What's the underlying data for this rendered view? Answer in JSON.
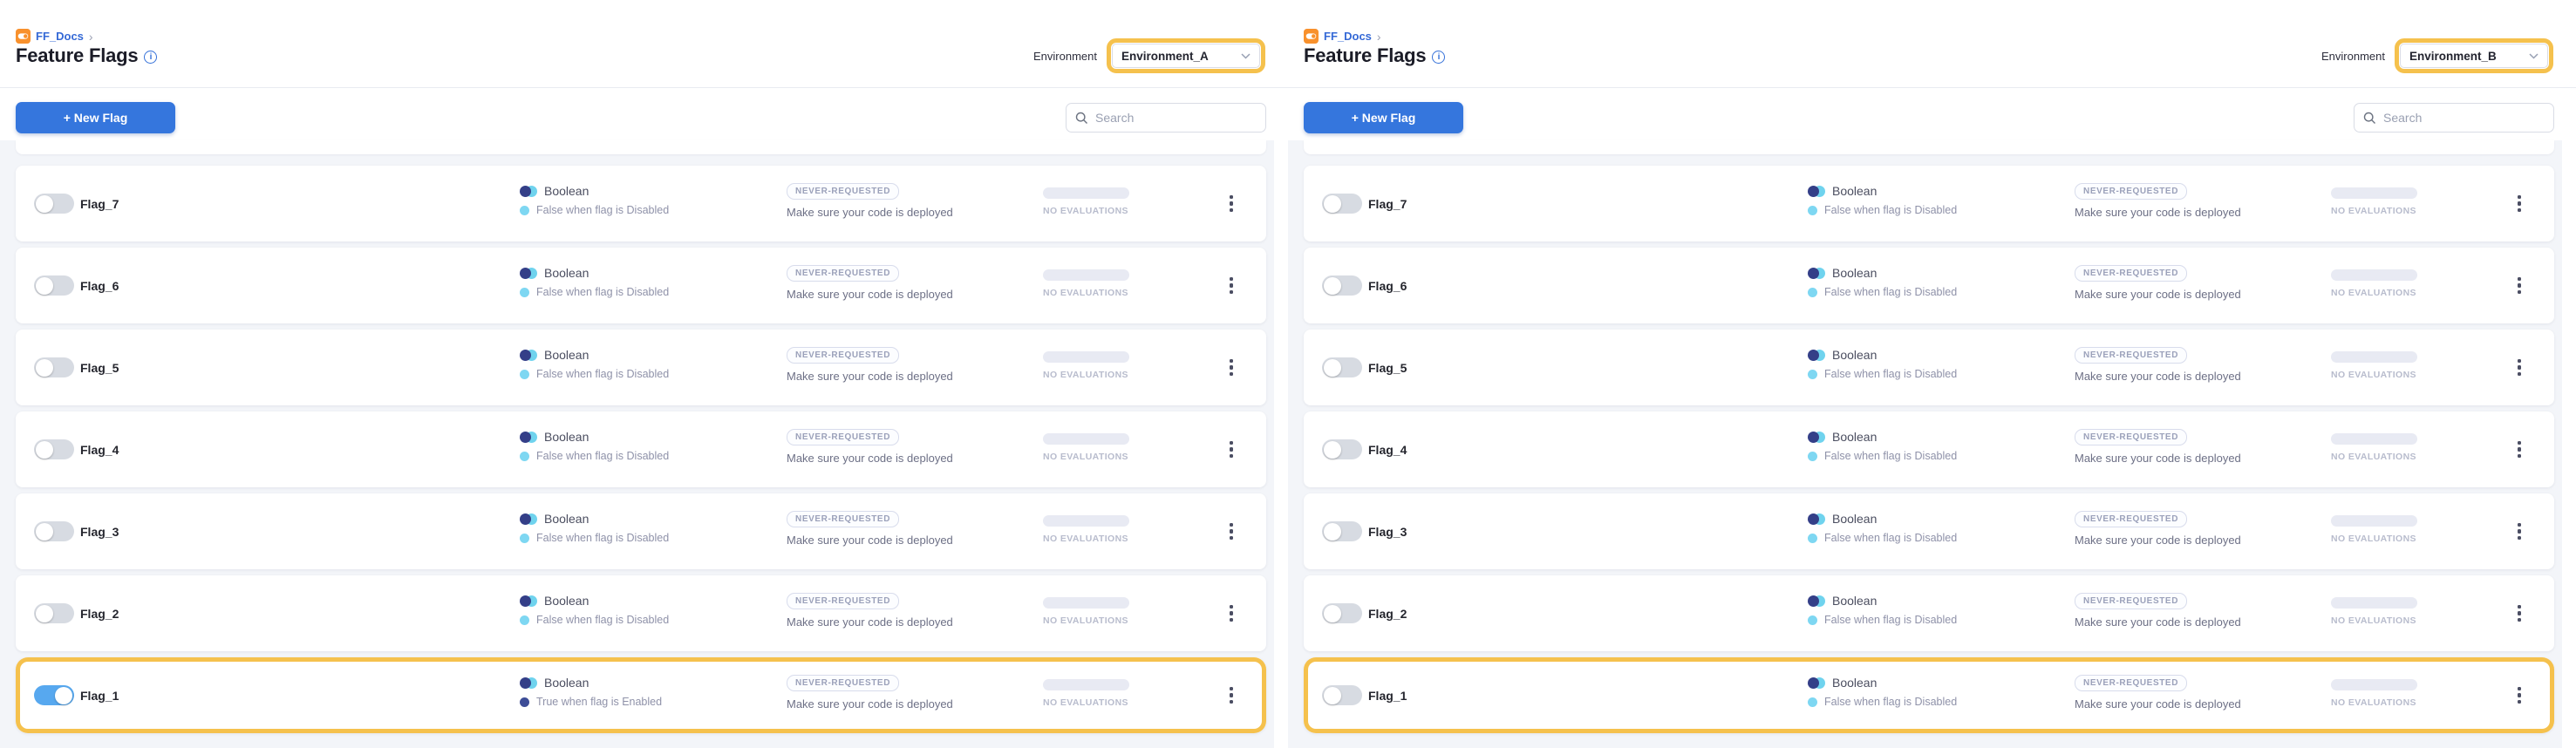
{
  "colors": {
    "highlight_amber": "#f5c14d",
    "primary_button_blue": "#3576dd",
    "link_blue": "#3569d6",
    "toggle_on_blue": "#57a8ef",
    "boolean_navy": "#343f88",
    "boolean_sky": "#6fd3ee",
    "list_background": "#f3f5f9"
  },
  "icons": {
    "project": "flag-module-icon",
    "title_info": "info-icon",
    "search": "search-icon",
    "select_chevron": "chevron-down-icon",
    "row_menu": "kebab-menu-icon",
    "flag_type": "boolean-circles-icon"
  },
  "panels": [
    {
      "breadcrumb_project": "FF_Docs",
      "breadcrumb_chevron": "›",
      "title": "Feature Flags",
      "environment_label": "Environment",
      "environment_value": "Environment_A",
      "new_flag_label": "+ New Flag",
      "search_placeholder": "Search",
      "flags": [
        {
          "name": "Flag_7",
          "enabled": false,
          "highlighted": false,
          "type": "Boolean",
          "variation": "False when flag is Disabled",
          "status": "NEVER-REQUESTED",
          "status_note": "Make sure your code is deployed",
          "evaluations": "NO EVALUATIONS"
        },
        {
          "name": "Flag_6",
          "enabled": false,
          "highlighted": false,
          "type": "Boolean",
          "variation": "False when flag is Disabled",
          "status": "NEVER-REQUESTED",
          "status_note": "Make sure your code is deployed",
          "evaluations": "NO EVALUATIONS"
        },
        {
          "name": "Flag_5",
          "enabled": false,
          "highlighted": false,
          "type": "Boolean",
          "variation": "False when flag is Disabled",
          "status": "NEVER-REQUESTED",
          "status_note": "Make sure your code is deployed",
          "evaluations": "NO EVALUATIONS"
        },
        {
          "name": "Flag_4",
          "enabled": false,
          "highlighted": false,
          "type": "Boolean",
          "variation": "False when flag is Disabled",
          "status": "NEVER-REQUESTED",
          "status_note": "Make sure your code is deployed",
          "evaluations": "NO EVALUATIONS"
        },
        {
          "name": "Flag_3",
          "enabled": false,
          "highlighted": false,
          "type": "Boolean",
          "variation": "False when flag is Disabled",
          "status": "NEVER-REQUESTED",
          "status_note": "Make sure your code is deployed",
          "evaluations": "NO EVALUATIONS"
        },
        {
          "name": "Flag_2",
          "enabled": false,
          "highlighted": false,
          "type": "Boolean",
          "variation": "False when flag is Disabled",
          "status": "NEVER-REQUESTED",
          "status_note": "Make sure your code is deployed",
          "evaluations": "NO EVALUATIONS"
        },
        {
          "name": "Flag_1",
          "enabled": true,
          "highlighted": true,
          "type": "Boolean",
          "variation": "True when flag is Enabled",
          "status": "NEVER-REQUESTED",
          "status_note": "Make sure your code is deployed",
          "evaluations": "NO EVALUATIONS"
        }
      ]
    },
    {
      "breadcrumb_project": "FF_Docs",
      "breadcrumb_chevron": "›",
      "title": "Feature Flags",
      "environment_label": "Environment",
      "environment_value": "Environment_B",
      "new_flag_label": "+ New Flag",
      "search_placeholder": "Search",
      "flags": [
        {
          "name": "Flag_7",
          "enabled": false,
          "highlighted": false,
          "type": "Boolean",
          "variation": "False when flag is Disabled",
          "status": "NEVER-REQUESTED",
          "status_note": "Make sure your code is deployed",
          "evaluations": "NO EVALUATIONS"
        },
        {
          "name": "Flag_6",
          "enabled": false,
          "highlighted": false,
          "type": "Boolean",
          "variation": "False when flag is Disabled",
          "status": "NEVER-REQUESTED",
          "status_note": "Make sure your code is deployed",
          "evaluations": "NO EVALUATIONS"
        },
        {
          "name": "Flag_5",
          "enabled": false,
          "highlighted": false,
          "type": "Boolean",
          "variation": "False when flag is Disabled",
          "status": "NEVER-REQUESTED",
          "status_note": "Make sure your code is deployed",
          "evaluations": "NO EVALUATIONS"
        },
        {
          "name": "Flag_4",
          "enabled": false,
          "highlighted": false,
          "type": "Boolean",
          "variation": "False when flag is Disabled",
          "status": "NEVER-REQUESTED",
          "status_note": "Make sure your code is deployed",
          "evaluations": "NO EVALUATIONS"
        },
        {
          "name": "Flag_3",
          "enabled": false,
          "highlighted": false,
          "type": "Boolean",
          "variation": "False when flag is Disabled",
          "status": "NEVER-REQUESTED",
          "status_note": "Make sure your code is deployed",
          "evaluations": "NO EVALUATIONS"
        },
        {
          "name": "Flag_2",
          "enabled": false,
          "highlighted": false,
          "type": "Boolean",
          "variation": "False when flag is Disabled",
          "status": "NEVER-REQUESTED",
          "status_note": "Make sure your code is deployed",
          "evaluations": "NO EVALUATIONS"
        },
        {
          "name": "Flag_1",
          "enabled": false,
          "highlighted": true,
          "type": "Boolean",
          "variation": "False when flag is Disabled",
          "status": "NEVER-REQUESTED",
          "status_note": "Make sure your code is deployed",
          "evaluations": "NO EVALUATIONS"
        }
      ]
    }
  ]
}
